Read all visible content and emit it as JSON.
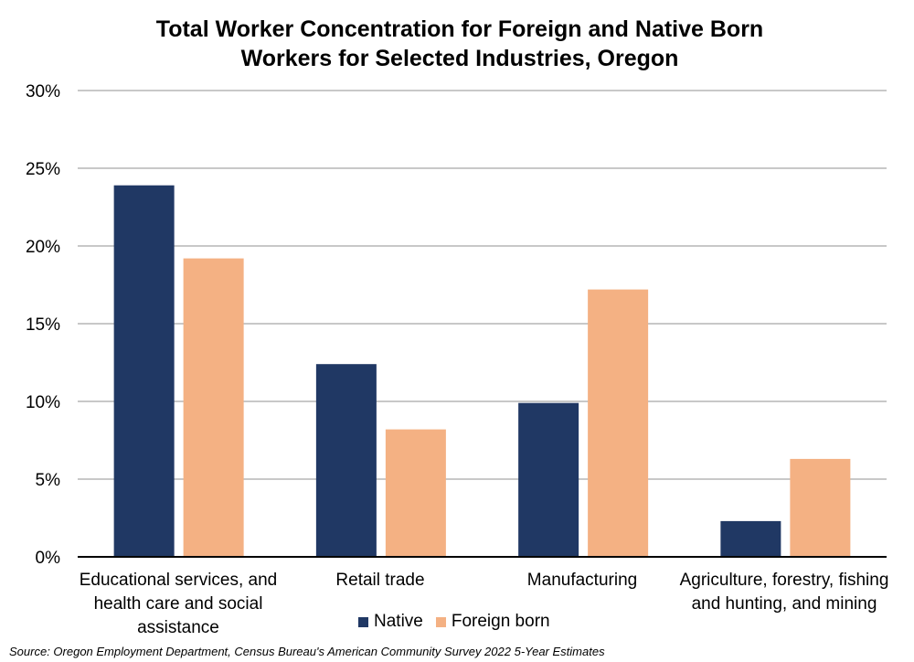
{
  "chart_data": {
    "type": "bar",
    "title_lines": [
      "Total Worker Concentration for Foreign and Native Born",
      "Workers for Selected Industries, Oregon"
    ],
    "categories": [
      "Educational services, and health care and social assistance",
      "Retail trade",
      "Manufacturing",
      "Agriculture, forestry, fishing and hunting, and mining"
    ],
    "series": [
      {
        "name": "Native",
        "color": "#203864",
        "values": [
          23.9,
          12.4,
          9.9,
          2.3
        ]
      },
      {
        "name": "Foreign born",
        "color": "#F4B183",
        "values": [
          19.2,
          8.2,
          17.2,
          6.3
        ]
      }
    ],
    "ylim": [
      0,
      30
    ],
    "yticks": [
      "0%",
      "5%",
      "10%",
      "15%",
      "20%",
      "25%",
      "30%"
    ],
    "grid": true,
    "legend_position": "bottom"
  },
  "source": "Source: Oregon Employment Department, Census Bureau's American Community Survey 2022 5-Year Estimates"
}
